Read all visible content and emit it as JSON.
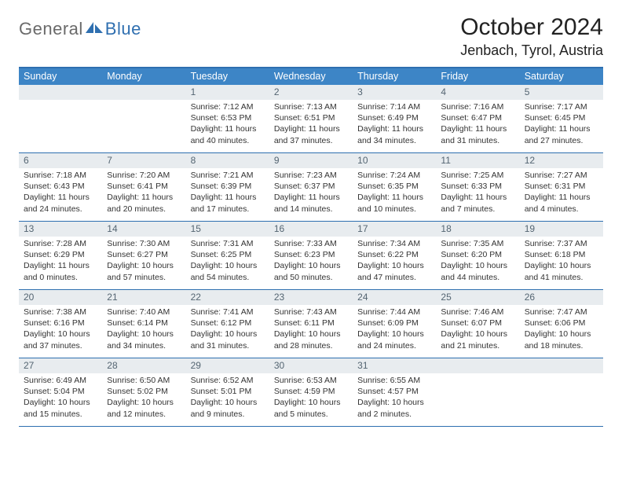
{
  "brand": {
    "general": "General",
    "blue": "Blue"
  },
  "header": {
    "month_title": "October 2024",
    "location": "Jenbach, Tyrol, Austria"
  },
  "colors": {
    "header_bar": "#3d85c6",
    "rule": "#2e6fb0",
    "daynum_bg": "#e8ecef",
    "daynum_fg": "#546572",
    "text": "#333333",
    "logo_gray": "#6a6a6a",
    "logo_blue": "#2f6fb0"
  },
  "dow": [
    "Sunday",
    "Monday",
    "Tuesday",
    "Wednesday",
    "Thursday",
    "Friday",
    "Saturday"
  ],
  "weeks": [
    [
      {
        "n": "",
        "sr": "",
        "ss": "",
        "dl": ""
      },
      {
        "n": "",
        "sr": "",
        "ss": "",
        "dl": ""
      },
      {
        "n": "1",
        "sr": "Sunrise: 7:12 AM",
        "ss": "Sunset: 6:53 PM",
        "dl": "Daylight: 11 hours and 40 minutes."
      },
      {
        "n": "2",
        "sr": "Sunrise: 7:13 AM",
        "ss": "Sunset: 6:51 PM",
        "dl": "Daylight: 11 hours and 37 minutes."
      },
      {
        "n": "3",
        "sr": "Sunrise: 7:14 AM",
        "ss": "Sunset: 6:49 PM",
        "dl": "Daylight: 11 hours and 34 minutes."
      },
      {
        "n": "4",
        "sr": "Sunrise: 7:16 AM",
        "ss": "Sunset: 6:47 PM",
        "dl": "Daylight: 11 hours and 31 minutes."
      },
      {
        "n": "5",
        "sr": "Sunrise: 7:17 AM",
        "ss": "Sunset: 6:45 PM",
        "dl": "Daylight: 11 hours and 27 minutes."
      }
    ],
    [
      {
        "n": "6",
        "sr": "Sunrise: 7:18 AM",
        "ss": "Sunset: 6:43 PM",
        "dl": "Daylight: 11 hours and 24 minutes."
      },
      {
        "n": "7",
        "sr": "Sunrise: 7:20 AM",
        "ss": "Sunset: 6:41 PM",
        "dl": "Daylight: 11 hours and 20 minutes."
      },
      {
        "n": "8",
        "sr": "Sunrise: 7:21 AM",
        "ss": "Sunset: 6:39 PM",
        "dl": "Daylight: 11 hours and 17 minutes."
      },
      {
        "n": "9",
        "sr": "Sunrise: 7:23 AM",
        "ss": "Sunset: 6:37 PM",
        "dl": "Daylight: 11 hours and 14 minutes."
      },
      {
        "n": "10",
        "sr": "Sunrise: 7:24 AM",
        "ss": "Sunset: 6:35 PM",
        "dl": "Daylight: 11 hours and 10 minutes."
      },
      {
        "n": "11",
        "sr": "Sunrise: 7:25 AM",
        "ss": "Sunset: 6:33 PM",
        "dl": "Daylight: 11 hours and 7 minutes."
      },
      {
        "n": "12",
        "sr": "Sunrise: 7:27 AM",
        "ss": "Sunset: 6:31 PM",
        "dl": "Daylight: 11 hours and 4 minutes."
      }
    ],
    [
      {
        "n": "13",
        "sr": "Sunrise: 7:28 AM",
        "ss": "Sunset: 6:29 PM",
        "dl": "Daylight: 11 hours and 0 minutes."
      },
      {
        "n": "14",
        "sr": "Sunrise: 7:30 AM",
        "ss": "Sunset: 6:27 PM",
        "dl": "Daylight: 10 hours and 57 minutes."
      },
      {
        "n": "15",
        "sr": "Sunrise: 7:31 AM",
        "ss": "Sunset: 6:25 PM",
        "dl": "Daylight: 10 hours and 54 minutes."
      },
      {
        "n": "16",
        "sr": "Sunrise: 7:33 AM",
        "ss": "Sunset: 6:23 PM",
        "dl": "Daylight: 10 hours and 50 minutes."
      },
      {
        "n": "17",
        "sr": "Sunrise: 7:34 AM",
        "ss": "Sunset: 6:22 PM",
        "dl": "Daylight: 10 hours and 47 minutes."
      },
      {
        "n": "18",
        "sr": "Sunrise: 7:35 AM",
        "ss": "Sunset: 6:20 PM",
        "dl": "Daylight: 10 hours and 44 minutes."
      },
      {
        "n": "19",
        "sr": "Sunrise: 7:37 AM",
        "ss": "Sunset: 6:18 PM",
        "dl": "Daylight: 10 hours and 41 minutes."
      }
    ],
    [
      {
        "n": "20",
        "sr": "Sunrise: 7:38 AM",
        "ss": "Sunset: 6:16 PM",
        "dl": "Daylight: 10 hours and 37 minutes."
      },
      {
        "n": "21",
        "sr": "Sunrise: 7:40 AM",
        "ss": "Sunset: 6:14 PM",
        "dl": "Daylight: 10 hours and 34 minutes."
      },
      {
        "n": "22",
        "sr": "Sunrise: 7:41 AM",
        "ss": "Sunset: 6:12 PM",
        "dl": "Daylight: 10 hours and 31 minutes."
      },
      {
        "n": "23",
        "sr": "Sunrise: 7:43 AM",
        "ss": "Sunset: 6:11 PM",
        "dl": "Daylight: 10 hours and 28 minutes."
      },
      {
        "n": "24",
        "sr": "Sunrise: 7:44 AM",
        "ss": "Sunset: 6:09 PM",
        "dl": "Daylight: 10 hours and 24 minutes."
      },
      {
        "n": "25",
        "sr": "Sunrise: 7:46 AM",
        "ss": "Sunset: 6:07 PM",
        "dl": "Daylight: 10 hours and 21 minutes."
      },
      {
        "n": "26",
        "sr": "Sunrise: 7:47 AM",
        "ss": "Sunset: 6:06 PM",
        "dl": "Daylight: 10 hours and 18 minutes."
      }
    ],
    [
      {
        "n": "27",
        "sr": "Sunrise: 6:49 AM",
        "ss": "Sunset: 5:04 PM",
        "dl": "Daylight: 10 hours and 15 minutes."
      },
      {
        "n": "28",
        "sr": "Sunrise: 6:50 AM",
        "ss": "Sunset: 5:02 PM",
        "dl": "Daylight: 10 hours and 12 minutes."
      },
      {
        "n": "29",
        "sr": "Sunrise: 6:52 AM",
        "ss": "Sunset: 5:01 PM",
        "dl": "Daylight: 10 hours and 9 minutes."
      },
      {
        "n": "30",
        "sr": "Sunrise: 6:53 AM",
        "ss": "Sunset: 4:59 PM",
        "dl": "Daylight: 10 hours and 5 minutes."
      },
      {
        "n": "31",
        "sr": "Sunrise: 6:55 AM",
        "ss": "Sunset: 4:57 PM",
        "dl": "Daylight: 10 hours and 2 minutes."
      },
      {
        "n": "",
        "sr": "",
        "ss": "",
        "dl": ""
      },
      {
        "n": "",
        "sr": "",
        "ss": "",
        "dl": ""
      }
    ]
  ]
}
